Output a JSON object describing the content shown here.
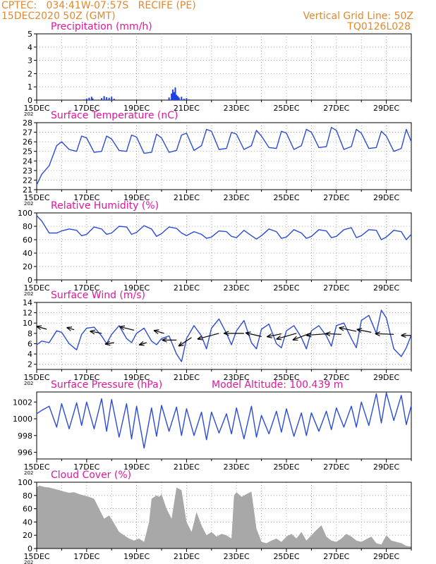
{
  "header": {
    "line1": "CPTEC:   034:41W-07:57S   RECIFE (PE)",
    "line2": "15DEC2020 50Z (GMT)",
    "grid_note": "Vertical Grid Line: 50Z",
    "model_code": "TQ0126L028"
  },
  "colors": {
    "header": "#e0892f",
    "panel_title": "#e0189a",
    "series_line": "#2b4bd8",
    "precip_bar": "#1f3fe0",
    "cloud_fill": "#a8a8a8",
    "wind_arrow": "#000000"
  },
  "x_ticks": [
    "15DEC",
    "17DEC",
    "19DEC",
    "21DEC",
    "23DEC",
    "25DEC",
    "27DEC",
    "29DEC"
  ],
  "year_fragment": "202",
  "chart_data": [
    {
      "id": "precip",
      "type": "bar",
      "title": "Precipitation (mm/h)",
      "ylim": [
        0,
        5
      ],
      "yticks": [
        "0",
        "1",
        "2",
        "3",
        "4",
        "5"
      ],
      "grid": true,
      "x_day_start": 15.0,
      "x_day_end": 30.0,
      "x": [
        16.9,
        17.0,
        17.1,
        17.2,
        17.25,
        17.6,
        17.7,
        17.8,
        17.9,
        18.0,
        18.1,
        20.3,
        20.4,
        20.45,
        20.5,
        20.55,
        20.6,
        20.65,
        20.7,
        20.8,
        20.9,
        21.0,
        21.1
      ],
      "values": [
        0.05,
        0.12,
        0.18,
        0.25,
        0.12,
        0.15,
        0.3,
        0.22,
        0.18,
        0.25,
        0.1,
        0.2,
        0.5,
        0.8,
        0.6,
        0.95,
        0.4,
        0.3,
        0.2,
        0.25,
        0.1,
        0.15,
        0.05
      ]
    },
    {
      "id": "temp",
      "type": "line",
      "title": "Surface Temperature (nC)",
      "ylim": [
        21,
        28
      ],
      "yticks": [
        "21",
        "22",
        "23",
        "24",
        "25",
        "26",
        "27",
        "28"
      ],
      "grid": true,
      "x": [
        15.0,
        15.2,
        15.5,
        15.8,
        16.0,
        16.3,
        16.6,
        16.8,
        17.0,
        17.3,
        17.6,
        17.8,
        18.0,
        18.3,
        18.6,
        18.8,
        19.0,
        19.3,
        19.6,
        19.8,
        20.0,
        20.3,
        20.6,
        20.8,
        21.0,
        21.3,
        21.6,
        21.8,
        22.0,
        22.3,
        22.6,
        22.8,
        23.0,
        23.3,
        23.6,
        23.8,
        24.0,
        24.3,
        24.6,
        24.8,
        25.0,
        25.3,
        25.6,
        25.8,
        26.0,
        26.3,
        26.6,
        26.8,
        27.0,
        27.3,
        27.6,
        27.8,
        28.0,
        28.3,
        28.6,
        28.8,
        29.0,
        29.3,
        29.6,
        29.8,
        30.0
      ],
      "values": [
        21.5,
        22.6,
        23.5,
        25.6,
        26.0,
        25.2,
        25.0,
        26.6,
        26.4,
        24.9,
        25.0,
        26.6,
        26.3,
        25.1,
        25.0,
        26.7,
        26.5,
        24.8,
        24.9,
        26.8,
        26.4,
        24.9,
        25.1,
        26.7,
        26.9,
        25.1,
        25.6,
        27.3,
        27.1,
        25.2,
        25.3,
        27.0,
        26.8,
        25.2,
        25.6,
        27.2,
        26.6,
        25.4,
        25.3,
        27.1,
        26.9,
        25.2,
        25.6,
        27.3,
        27.0,
        25.4,
        25.5,
        27.5,
        27.2,
        25.2,
        25.5,
        27.3,
        26.9,
        25.3,
        25.4,
        27.1,
        26.6,
        25.0,
        25.3,
        27.3,
        26.0
      ]
    },
    {
      "id": "rh",
      "type": "line",
      "title": "Relative Humidity (%)",
      "ylim": [
        0,
        100
      ],
      "yticks": [
        "0",
        "20",
        "40",
        "60",
        "80",
        "100"
      ],
      "grid": true,
      "x": [
        15.0,
        15.2,
        15.5,
        15.8,
        16.0,
        16.3,
        16.6,
        16.8,
        17.0,
        17.3,
        17.6,
        17.8,
        18.0,
        18.3,
        18.6,
        18.8,
        19.0,
        19.3,
        19.6,
        19.8,
        20.0,
        20.3,
        20.6,
        20.8,
        21.0,
        21.3,
        21.6,
        21.8,
        22.0,
        22.3,
        22.6,
        22.8,
        23.0,
        23.3,
        23.6,
        23.8,
        24.0,
        24.3,
        24.6,
        24.8,
        25.0,
        25.3,
        25.6,
        25.8,
        26.0,
        26.3,
        26.6,
        26.8,
        27.0,
        27.3,
        27.6,
        27.8,
        28.0,
        28.3,
        28.6,
        28.8,
        29.0,
        29.3,
        29.6,
        29.8,
        30.0
      ],
      "values": [
        96,
        88,
        70,
        70,
        73,
        76,
        74,
        66,
        68,
        79,
        76,
        68,
        70,
        80,
        79,
        68,
        71,
        81,
        76,
        65,
        69,
        79,
        77,
        70,
        66,
        72,
        68,
        62,
        64,
        73,
        72,
        65,
        63,
        74,
        66,
        61,
        66,
        76,
        72,
        62,
        64,
        75,
        70,
        62,
        65,
        75,
        73,
        63,
        65,
        75,
        78,
        63,
        66,
        75,
        74,
        60,
        64,
        74,
        72,
        60,
        68
      ]
    },
    {
      "id": "wind",
      "type": "line",
      "title": "Surface Wind (m/s)",
      "ylim": [
        1,
        14
      ],
      "yticks": [
        "2",
        "4",
        "6",
        "8",
        "10",
        "12",
        "14"
      ],
      "grid": true,
      "x": [
        15.0,
        15.2,
        15.5,
        15.8,
        16.0,
        16.3,
        16.6,
        16.8,
        17.0,
        17.3,
        17.6,
        17.8,
        18.0,
        18.3,
        18.6,
        18.8,
        19.0,
        19.3,
        19.6,
        19.8,
        20.0,
        20.3,
        20.6,
        20.8,
        21.0,
        21.3,
        21.6,
        21.8,
        22.0,
        22.3,
        22.6,
        22.8,
        23.0,
        23.3,
        23.6,
        23.8,
        24.0,
        24.3,
        24.6,
        24.8,
        25.0,
        25.3,
        25.6,
        25.8,
        26.0,
        26.3,
        26.6,
        26.8,
        27.0,
        27.3,
        27.6,
        27.8,
        28.0,
        28.3,
        28.6,
        28.8,
        29.0,
        29.3,
        29.6,
        29.8,
        30.0
      ],
      "values": [
        5.8,
        6.5,
        6.2,
        8.5,
        8.2,
        6.0,
        4.8,
        7.8,
        9.0,
        9.2,
        7.5,
        6.0,
        7.8,
        9.5,
        7.0,
        6.2,
        8.0,
        9.0,
        6.5,
        5.8,
        7.0,
        7.5,
        4.0,
        2.5,
        7.0,
        9.5,
        7.5,
        5.0,
        9.0,
        10.8,
        8.0,
        5.8,
        8.5,
        10.5,
        6.2,
        5.0,
        8.8,
        9.8,
        6.0,
        5.2,
        8.5,
        9.5,
        7.2,
        5.0,
        8.5,
        9.5,
        7.5,
        5.5,
        9.5,
        10.0,
        7.0,
        5.2,
        10.5,
        11.5,
        8.0,
        12.5,
        11.0,
        5.0,
        3.5,
        5.2,
        7.7
      ],
      "arrows": [
        {
          "x": 15.4,
          "y": 8.8,
          "dx": -14,
          "dy": -4
        },
        {
          "x": 16.5,
          "y": 8.7,
          "dx": -10,
          "dy": -3
        },
        {
          "x": 17.6,
          "y": 8.0,
          "dx": -16,
          "dy": -3
        },
        {
          "x": 18.1,
          "y": 6.2,
          "dx": -12,
          "dy": 2
        },
        {
          "x": 18.9,
          "y": 8.6,
          "dx": -20,
          "dy": -5
        },
        {
          "x": 19.4,
          "y": 6.2,
          "dx": -10,
          "dy": 3
        },
        {
          "x": 20.1,
          "y": 8.0,
          "dx": -14,
          "dy": -4
        },
        {
          "x": 20.6,
          "y": 6.7,
          "dx": -20,
          "dy": 0
        },
        {
          "x": 21.2,
          "y": 7.2,
          "dx": -18,
          "dy": 12
        },
        {
          "x": 22.3,
          "y": 8.0,
          "dx": -30,
          "dy": 8
        },
        {
          "x": 23.3,
          "y": 8.0,
          "dx": -28,
          "dy": 0
        },
        {
          "x": 24.0,
          "y": 7.4,
          "dx": -22,
          "dy": -5
        },
        {
          "x": 24.8,
          "y": 7.9,
          "dx": -20,
          "dy": 4
        },
        {
          "x": 25.4,
          "y": 8.0,
          "dx": -28,
          "dy": 8
        },
        {
          "x": 26.0,
          "y": 8.1,
          "dx": -26,
          "dy": 10
        },
        {
          "x": 26.6,
          "y": 7.9,
          "dx": -28,
          "dy": 2
        },
        {
          "x": 27.2,
          "y": 7.8,
          "dx": -22,
          "dy": -1
        },
        {
          "x": 27.8,
          "y": 8.4,
          "dx": -24,
          "dy": -5
        },
        {
          "x": 28.4,
          "y": 8.2,
          "dx": -20,
          "dy": -4
        },
        {
          "x": 29.3,
          "y": 7.8,
          "dx": -26,
          "dy": -1
        },
        {
          "x": 30.0,
          "y": 7.6,
          "dx": -14,
          "dy": 0
        }
      ]
    },
    {
      "id": "pressure",
      "type": "line",
      "title": "Surface Pressure (hPa)",
      "annotation": "Model Altitude: 100.439 m",
      "ylim": [
        995.2,
        1003.2
      ],
      "yticks": [
        "996",
        "998",
        "1000",
        "1002"
      ],
      "grid": false,
      "x": [
        15.0,
        15.2,
        15.5,
        15.8,
        16.0,
        16.3,
        16.6,
        16.8,
        17.0,
        17.3,
        17.6,
        17.8,
        18.0,
        18.3,
        18.6,
        18.8,
        19.0,
        19.3,
        19.6,
        19.8,
        20.0,
        20.3,
        20.6,
        20.8,
        21.0,
        21.3,
        21.6,
        21.8,
        22.0,
        22.3,
        22.6,
        22.8,
        23.0,
        23.3,
        23.6,
        23.8,
        24.0,
        24.3,
        24.6,
        24.8,
        25.0,
        25.3,
        25.6,
        25.8,
        26.0,
        26.3,
        26.6,
        26.8,
        27.0,
        27.3,
        27.6,
        27.8,
        28.0,
        28.3,
        28.6,
        28.8,
        29.0,
        29.3,
        29.6,
        29.8,
        30.0
      ],
      "values": [
        1000.6,
        1001.0,
        1001.5,
        999.0,
        1001.8,
        998.8,
        1001.9,
        999.2,
        1002.0,
        998.8,
        1002.4,
        998.5,
        1002.3,
        997.8,
        1001.8,
        997.6,
        1001.5,
        996.5,
        1001.3,
        997.9,
        1001.6,
        998.5,
        1001.4,
        998.0,
        1001.2,
        998.0,
        1000.8,
        997.5,
        1000.8,
        998.3,
        1000.6,
        998.2,
        1001.3,
        997.6,
        1001.5,
        997.8,
        1000.4,
        998.2,
        1000.9,
        998.4,
        1001.2,
        997.9,
        1000.7,
        998.0,
        1000.7,
        998.5,
        1000.9,
        998.7,
        1001.3,
        999.0,
        1001.5,
        999.0,
        1002.0,
        999.2,
        1003.0,
        999.5,
        1003.1,
        999.8,
        1002.8,
        999.3,
        1001.6
      ]
    },
    {
      "id": "cloud",
      "type": "area",
      "title": "Cloud Cover (%)",
      "ylim": [
        0,
        100
      ],
      "yticks": [
        "0",
        "20",
        "40",
        "60",
        "80",
        "100"
      ],
      "grid": true,
      "x": [
        15.0,
        15.1,
        15.3,
        15.5,
        15.7,
        15.9,
        16.1,
        16.3,
        16.5,
        16.7,
        16.9,
        17.1,
        17.3,
        17.5,
        17.7,
        17.9,
        18.1,
        18.3,
        18.5,
        18.7,
        18.9,
        19.1,
        19.3,
        19.5,
        19.6,
        19.8,
        19.9,
        20.0,
        20.2,
        20.4,
        20.6,
        20.8,
        21.0,
        21.2,
        21.4,
        21.6,
        21.8,
        22.0,
        22.2,
        22.4,
        22.6,
        22.8,
        22.9,
        23.0,
        23.2,
        23.4,
        23.6,
        23.8,
        24.0,
        24.2,
        24.4,
        24.6,
        24.8,
        25.0,
        25.2,
        25.4,
        25.6,
        25.8,
        26.0,
        26.2,
        26.4,
        26.6,
        26.8,
        27.0,
        27.2,
        27.4,
        27.6,
        27.8,
        28.0,
        28.2,
        28.4,
        28.6,
        28.8,
        29.0,
        29.2,
        29.4,
        29.6,
        29.8,
        30.0
      ],
      "values": [
        92,
        95,
        93,
        92,
        90,
        88,
        86,
        84,
        85,
        82,
        80,
        78,
        75,
        60,
        45,
        50,
        38,
        25,
        20,
        15,
        12,
        15,
        10,
        40,
        75,
        80,
        78,
        82,
        60,
        45,
        92,
        88,
        40,
        25,
        55,
        35,
        20,
        25,
        18,
        22,
        20,
        15,
        80,
        85,
        78,
        82,
        86,
        30,
        10,
        8,
        12,
        15,
        10,
        18,
        22,
        15,
        25,
        12,
        20,
        28,
        35,
        18,
        12,
        10,
        15,
        22,
        18,
        12,
        10,
        14,
        18,
        8,
        6,
        20,
        12,
        10,
        8,
        4,
        3
      ]
    }
  ]
}
